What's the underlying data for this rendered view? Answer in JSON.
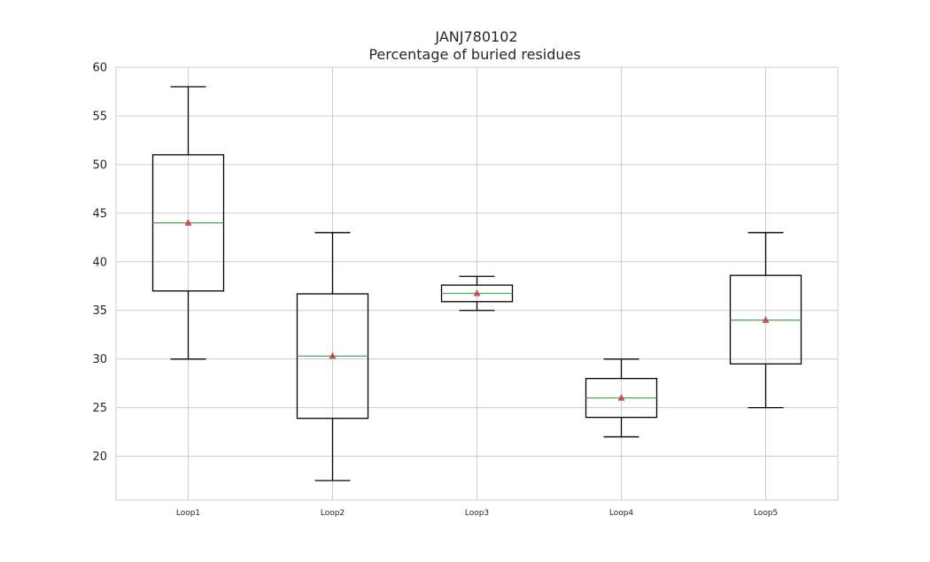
{
  "chart_data": {
    "type": "box",
    "title": [
      "JANJ780102",
      "Percentage of buried residues"
    ],
    "xlabel": "",
    "ylabel": "",
    "ylim": [
      15.5,
      60
    ],
    "yticks": [
      20,
      25,
      30,
      35,
      40,
      45,
      50,
      55,
      60
    ],
    "grid": true,
    "categories": [
      "Loop1",
      "Loop2",
      "Loop3",
      "Loop4",
      "Loop5"
    ],
    "boxes": [
      {
        "whislo": 30.0,
        "q1": 37.0,
        "median": 44.0,
        "q3": 51.0,
        "whishi": 58.0,
        "mean": 44.0
      },
      {
        "whislo": 17.5,
        "q1": 23.9,
        "median": 30.3,
        "q3": 36.7,
        "whishi": 43.0,
        "mean": 30.3
      },
      {
        "whislo": 35.0,
        "q1": 35.9,
        "median": 36.75,
        "q3": 37.6,
        "whishi": 38.5,
        "mean": 36.75
      },
      {
        "whislo": 22.0,
        "q1": 24.0,
        "median": 26.0,
        "q3": 28.0,
        "whishi": 30.0,
        "mean": 26.0
      },
      {
        "whislo": 25.0,
        "q1": 29.5,
        "median": 34.0,
        "q3": 38.6,
        "whishi": 43.0,
        "mean": 34.0
      }
    ],
    "colors": {
      "box": "#000000",
      "median": "#55a868",
      "mean_marker": "#c44e52",
      "grid": "#cccccc",
      "frame": "#cccccc"
    }
  }
}
